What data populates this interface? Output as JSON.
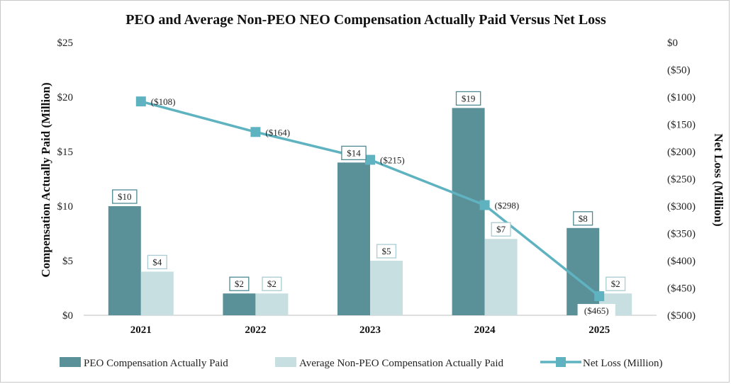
{
  "chart_data": {
    "type": "bar",
    "title": "PEO and Average Non-PEO NEO Compensation Actually Paid Versus Net Loss",
    "categories": [
      "2021",
      "2022",
      "2023",
      "2024",
      "2025"
    ],
    "ylabel_left": "Compensation Actually Paid (Million)",
    "ylabel_right": "Net Loss (Million)",
    "ylim_left": [
      0,
      25
    ],
    "ylim_right": [
      -500,
      0
    ],
    "left_ticks": [
      "$0",
      "$5",
      "$10",
      "$15",
      "$20",
      "$25"
    ],
    "right_ticks": [
      "$0",
      "($50)",
      "($100)",
      "($150)",
      "($200)",
      "($250)",
      "($300)",
      "($350)",
      "($400)",
      "($450)",
      "($500)"
    ],
    "grid": false,
    "legend_position": "bottom",
    "series": [
      {
        "name": "PEO Compensation Actually Paid",
        "kind": "bar",
        "axis": "left",
        "color": "#5a9098",
        "values": [
          10,
          2,
          14,
          19,
          8
        ],
        "labels": [
          "$10",
          "$2",
          "$14",
          "$19",
          "$8"
        ]
      },
      {
        "name": "Average Non-PEO Compensation Actually Paid",
        "kind": "bar",
        "axis": "left",
        "color": "#c8dfe1",
        "values": [
          4,
          2,
          5,
          7,
          2
        ],
        "labels": [
          "$4",
          "$2",
          "$5",
          "$7",
          "$2"
        ]
      },
      {
        "name": "Net Loss (Million)",
        "kind": "line",
        "axis": "right",
        "color": "#5fb3c1",
        "marker": "square",
        "values": [
          -108,
          -164,
          -215,
          -298,
          -465
        ],
        "labels": [
          "($108)",
          "($164)",
          "($215)",
          "($298)",
          "($465)"
        ]
      }
    ]
  }
}
